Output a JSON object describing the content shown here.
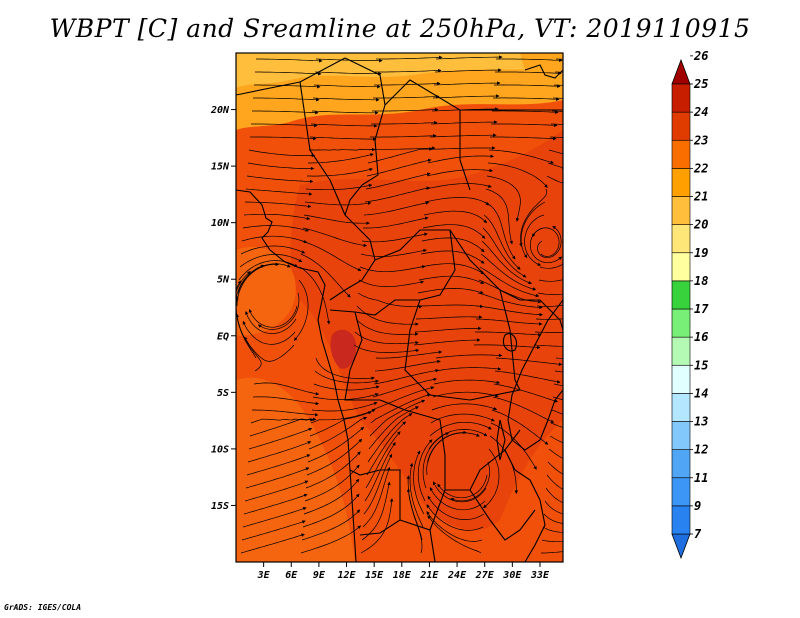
{
  "title": "WBPT [C] and Sreamline at 250hPa, VT: 2019110915",
  "credit": "GrADS: IGES/COLA",
  "map": {
    "lon_range": [
      0,
      35.5
    ],
    "lat_range": [
      -20,
      25
    ],
    "lon_ticks": [
      "3E",
      "6E",
      "9E",
      "12E",
      "15E",
      "18E",
      "21E",
      "24E",
      "27E",
      "30E",
      "33E"
    ],
    "lat_ticks": [
      "20N",
      "15N",
      "10N",
      "5N",
      "EQ",
      "5S",
      "10S",
      "15S"
    ],
    "field_base_color": "#f0500a"
  },
  "colorbar": {
    "labels": [
      "7",
      "9",
      "11",
      "12",
      "13",
      "14",
      "15",
      "16",
      "17",
      "18",
      "19",
      "20",
      "21",
      "22",
      "23",
      "24",
      "25",
      "26"
    ],
    "colors": [
      "#1e6ee0",
      "#2882f0",
      "#3c96f5",
      "#50a5f5",
      "#82c8fa",
      "#b4e6ff",
      "#e1ffff",
      "#b4fab4",
      "#78f078",
      "#37d23c",
      "#ffffa0",
      "#ffe678",
      "#ffbe3c",
      "#ffa000",
      "#fa6e00",
      "#e13c00",
      "#c81e00",
      "#a00000"
    ]
  }
}
